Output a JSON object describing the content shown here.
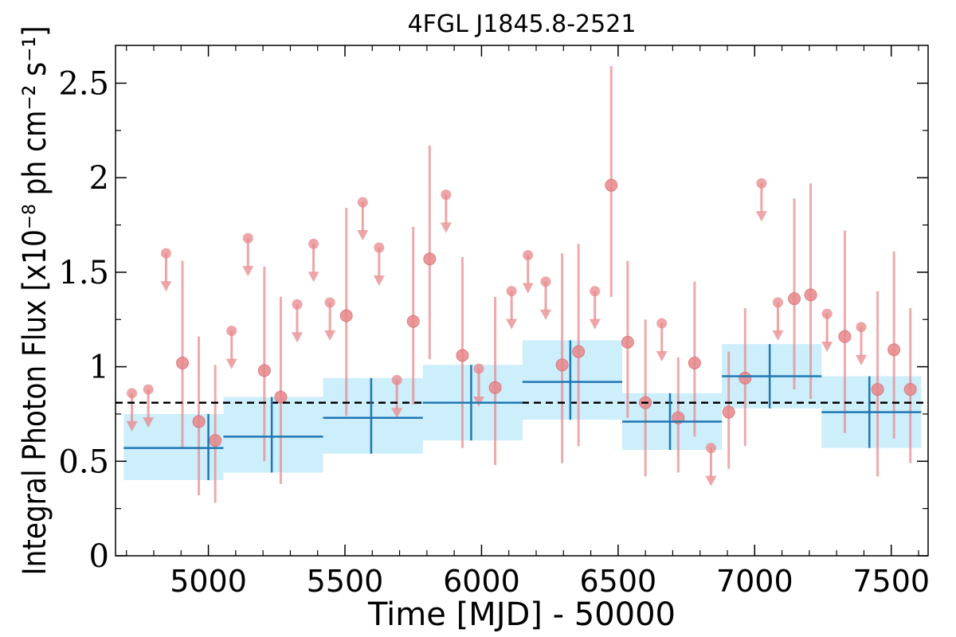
{
  "chart_data": {
    "type": "scatter",
    "title": "4FGL J1845.8-2521",
    "xlabel": "Time [MJD] - 50000",
    "ylabel": "Integral Photon Flux [x10⁻⁸ ph cm⁻² s⁻¹]",
    "xlim": [
      4660,
      7635
    ],
    "ylim": [
      0,
      2.7
    ],
    "xticks": [
      5000,
      5500,
      6000,
      6500,
      7000,
      7500
    ],
    "xtick_labels": [
      "5000",
      "5500",
      "6000",
      "6500",
      "7000",
      "7500"
    ],
    "yticks": [
      0,
      0.5,
      1,
      1.5,
      2,
      2.5
    ],
    "ytick_labels": [
      "0",
      "0.5",
      "1",
      "1.5",
      "2",
      "2.5"
    ],
    "grid": false,
    "mean_flux": 0.81,
    "colors": {
      "short_points": "#e8878a",
      "long_bins": "#1f77b4",
      "long_bands": "#cdeefb",
      "mean_line": "#000000"
    },
    "long_bins": [
      {
        "x_start": 4690,
        "x_end": 5055,
        "x": 5000,
        "y": 0.57,
        "band_low": 0.4,
        "band_high": 0.75
      },
      {
        "x_start": 5055,
        "x_end": 5420,
        "x": 5232,
        "y": 0.63,
        "band_low": 0.44,
        "band_high": 0.84
      },
      {
        "x_start": 5420,
        "x_end": 5785,
        "x": 5596,
        "y": 0.73,
        "band_low": 0.54,
        "band_high": 0.94
      },
      {
        "x_start": 5785,
        "x_end": 6150,
        "x": 5962,
        "y": 0.81,
        "band_low": 0.61,
        "band_high": 1.01
      },
      {
        "x_start": 6150,
        "x_end": 6515,
        "x": 6325,
        "y": 0.92,
        "band_low": 0.72,
        "band_high": 1.14
      },
      {
        "x_start": 6515,
        "x_end": 6880,
        "x": 6690,
        "y": 0.71,
        "band_low": 0.56,
        "band_high": 0.86
      },
      {
        "x_start": 6880,
        "x_end": 7245,
        "x": 7055,
        "y": 0.95,
        "band_low": 0.78,
        "band_high": 1.12
      },
      {
        "x_start": 7245,
        "x_end": 7610,
        "x": 7420,
        "y": 0.76,
        "band_low": 0.57,
        "band_high": 0.95
      }
    ],
    "short_points": [
      {
        "x": 4720,
        "y": 0.86,
        "ul": true
      },
      {
        "x": 4780,
        "y": 0.88,
        "ul": true
      },
      {
        "x": 4845,
        "y": 1.6,
        "ul": true
      },
      {
        "x": 4905,
        "y": 1.02,
        "low": 0.57,
        "high": 1.56
      },
      {
        "x": 4965,
        "y": 0.71,
        "low": 0.32,
        "high": 1.16
      },
      {
        "x": 5025,
        "y": 0.61,
        "low": 0.28,
        "high": 1.01
      },
      {
        "x": 5085,
        "y": 1.19,
        "ul": true
      },
      {
        "x": 5145,
        "y": 1.68,
        "ul": true
      },
      {
        "x": 5205,
        "y": 0.98,
        "low": 0.5,
        "high": 1.53
      },
      {
        "x": 5265,
        "y": 0.84,
        "low": 0.38,
        "high": 1.37
      },
      {
        "x": 5325,
        "y": 1.33,
        "ul": true
      },
      {
        "x": 5385,
        "y": 1.65,
        "ul": true
      },
      {
        "x": 5445,
        "y": 1.34,
        "ul": true
      },
      {
        "x": 5505,
        "y": 1.27,
        "low": 0.74,
        "high": 1.84
      },
      {
        "x": 5565,
        "y": 1.87,
        "ul": true
      },
      {
        "x": 5625,
        "y": 1.63,
        "ul": true
      },
      {
        "x": 5690,
        "y": 0.93,
        "ul": true
      },
      {
        "x": 5750,
        "y": 1.24,
        "low": 0.8,
        "high": 1.74
      },
      {
        "x": 5810,
        "y": 1.57,
        "low": 1.04,
        "high": 2.17
      },
      {
        "x": 5870,
        "y": 1.91,
        "ul": true
      },
      {
        "x": 5930,
        "y": 1.06,
        "low": 0.57,
        "high": 1.58
      },
      {
        "x": 5990,
        "y": 0.99,
        "ul": true
      },
      {
        "x": 6050,
        "y": 0.89,
        "low": 0.48,
        "high": 1.37
      },
      {
        "x": 6110,
        "y": 1.4,
        "ul": true
      },
      {
        "x": 6170,
        "y": 1.59,
        "ul": true
      },
      {
        "x": 6235,
        "y": 1.45,
        "ul": true
      },
      {
        "x": 6295,
        "y": 1.01,
        "low": 0.49,
        "high": 1.6
      },
      {
        "x": 6355,
        "y": 1.08,
        "low": 0.58,
        "high": 1.65
      },
      {
        "x": 6415,
        "y": 1.4,
        "ul": true
      },
      {
        "x": 6475,
        "y": 1.96,
        "low": 1.37,
        "high": 2.59
      },
      {
        "x": 6535,
        "y": 1.13,
        "low": 0.73,
        "high": 1.56
      },
      {
        "x": 6600,
        "y": 0.81,
        "low": 0.42,
        "high": 1.25
      },
      {
        "x": 6660,
        "y": 1.23,
        "ul": true
      },
      {
        "x": 6720,
        "y": 0.73,
        "low": 0.44,
        "high": 1.05
      },
      {
        "x": 6780,
        "y": 1.02,
        "low": 0.63,
        "high": 1.45
      },
      {
        "x": 6840,
        "y": 0.57,
        "ul": true
      },
      {
        "x": 6905,
        "y": 0.76,
        "low": 0.46,
        "high": 1.08
      },
      {
        "x": 6965,
        "y": 0.94,
        "low": 0.58,
        "high": 1.31
      },
      {
        "x": 7025,
        "y": 1.97,
        "ul": true
      },
      {
        "x": 7085,
        "y": 1.34,
        "ul": true
      },
      {
        "x": 7145,
        "y": 1.36,
        "low": 0.88,
        "high": 1.89
      },
      {
        "x": 7205,
        "y": 1.38,
        "low": 0.83,
        "high": 1.97
      },
      {
        "x": 7265,
        "y": 1.28,
        "ul": true
      },
      {
        "x": 7330,
        "y": 1.16,
        "low": 0.65,
        "high": 1.72
      },
      {
        "x": 7390,
        "y": 1.21,
        "ul": true
      },
      {
        "x": 7450,
        "y": 0.88,
        "low": 0.42,
        "high": 1.4
      },
      {
        "x": 7510,
        "y": 1.09,
        "low": 0.62,
        "high": 1.61
      },
      {
        "x": 7570,
        "y": 0.88,
        "low": 0.49,
        "high": 1.31
      }
    ]
  }
}
